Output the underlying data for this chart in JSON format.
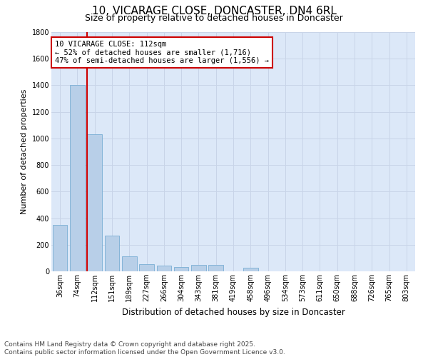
{
  "title1": "10, VICARAGE CLOSE, DONCASTER, DN4 6RL",
  "title2": "Size of property relative to detached houses in Doncaster",
  "xlabel": "Distribution of detached houses by size in Doncaster",
  "ylabel": "Number of detached properties",
  "categories": [
    "36sqm",
    "74sqm",
    "112sqm",
    "151sqm",
    "189sqm",
    "227sqm",
    "266sqm",
    "304sqm",
    "343sqm",
    "381sqm",
    "419sqm",
    "458sqm",
    "496sqm",
    "534sqm",
    "573sqm",
    "611sqm",
    "650sqm",
    "688sqm",
    "726sqm",
    "765sqm",
    "803sqm"
  ],
  "values": [
    350,
    1400,
    1030,
    270,
    115,
    55,
    45,
    30,
    50,
    50,
    0,
    28,
    0,
    0,
    0,
    0,
    0,
    0,
    0,
    0,
    0
  ],
  "bar_color": "#b8cfe8",
  "bar_edge_color": "#7aaed4",
  "vline_color": "#cc0000",
  "vline_index": 2,
  "annotation_line1": "10 VICARAGE CLOSE: 112sqm",
  "annotation_line2": "← 52% of detached houses are smaller (1,716)",
  "annotation_line3": "47% of semi-detached houses are larger (1,556) →",
  "annotation_box_color": "#cc0000",
  "ylim": [
    0,
    1800
  ],
  "yticks": [
    0,
    200,
    400,
    600,
    800,
    1000,
    1200,
    1400,
    1600,
    1800
  ],
  "grid_color": "#c8d4e8",
  "bg_color": "#dce8f8",
  "footnote": "Contains HM Land Registry data © Crown copyright and database right 2025.\nContains public sector information licensed under the Open Government Licence v3.0.",
  "title1_fontsize": 11,
  "title2_fontsize": 9,
  "annot_fontsize": 7.5,
  "ylabel_fontsize": 8,
  "xlabel_fontsize": 8.5,
  "footnote_fontsize": 6.5,
  "tick_fontsize": 7
}
